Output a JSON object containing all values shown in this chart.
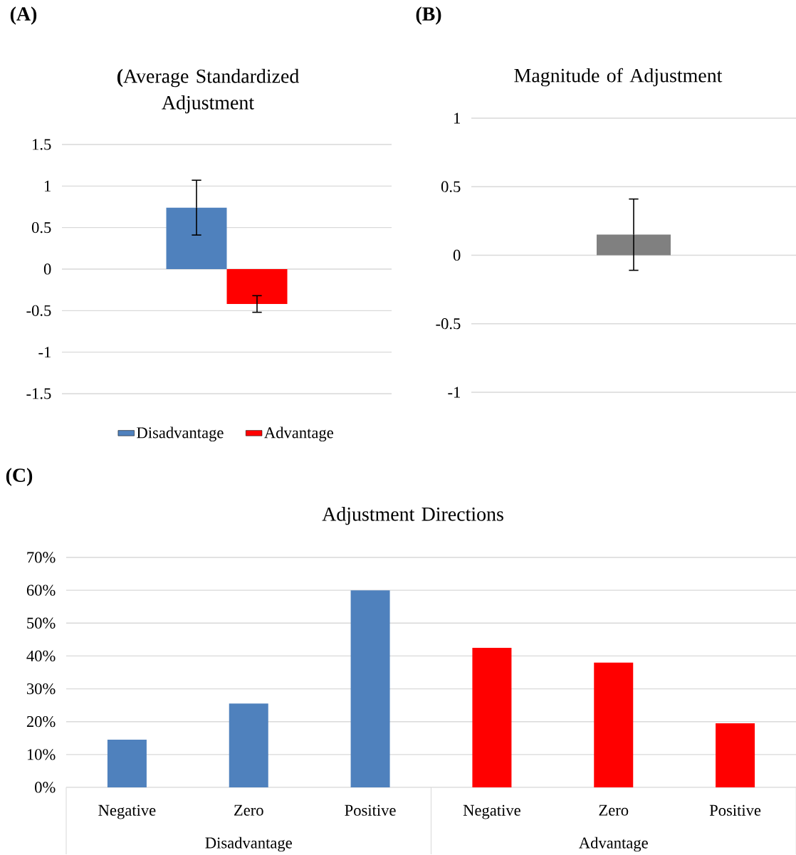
{
  "chart_data": [
    {
      "type": "bar",
      "title": "**(**Average Standardized Adjustment",
      "categories": [
        null
      ],
      "series": [
        {
          "name": "Disadvantage",
          "color": "#4f81bd",
          "values": [
            0.74
          ],
          "errors": [
            0.33
          ]
        },
        {
          "name": "Advantage",
          "color": "#ff0000",
          "values": [
            -0.42
          ],
          "errors": [
            0.1
          ]
        }
      ],
      "ylim": [
        -1.5,
        1.5
      ],
      "yticks": [
        -1.5,
        -1,
        -0.5,
        0,
        0.5,
        1,
        1.5
      ],
      "grid": "y",
      "legend": "bottom",
      "annotations": [
        "(A)"
      ]
    },
    {
      "type": "bar",
      "title": "Magnitude of Adjustment",
      "categories": [
        null
      ],
      "values": [
        0.15
      ],
      "errors": [
        0.26
      ],
      "color": "#808080",
      "ylim": [
        -1,
        1
      ],
      "yticks": [
        -1,
        -0.5,
        0,
        0.5,
        1
      ],
      "grid": "y",
      "annotations": [
        "(B)"
      ]
    },
    {
      "type": "bar",
      "title": "Adjustment Directions",
      "categories": [
        "Negative",
        "Zero",
        "Positive",
        "Negative",
        "Zero",
        "Positive"
      ],
      "values": [
        14.5,
        25.5,
        60,
        42.5,
        38,
        19.5
      ],
      "colors": [
        "#4f81bd",
        "#4f81bd",
        "#4f81bd",
        "#ff0000",
        "#ff0000",
        "#ff0000"
      ],
      "ylim": [
        0,
        70
      ],
      "yticks": [
        {
          "value": 0,
          "label": "0%"
        },
        {
          "value": 10,
          "label": "10%"
        },
        {
          "value": 20,
          "label": "20%"
        },
        {
          "value": 30,
          "label": "30%"
        },
        {
          "value": 40,
          "label": "40%"
        },
        {
          "value": 50,
          "label": "50%"
        },
        {
          "value": 60,
          "label": "60%"
        },
        {
          "value": 70,
          "label": "70%"
        }
      ],
      "grid": "y",
      "annotations": [
        "(C)",
        "Disadvantage",
        "Advantage"
      ]
    }
  ]
}
